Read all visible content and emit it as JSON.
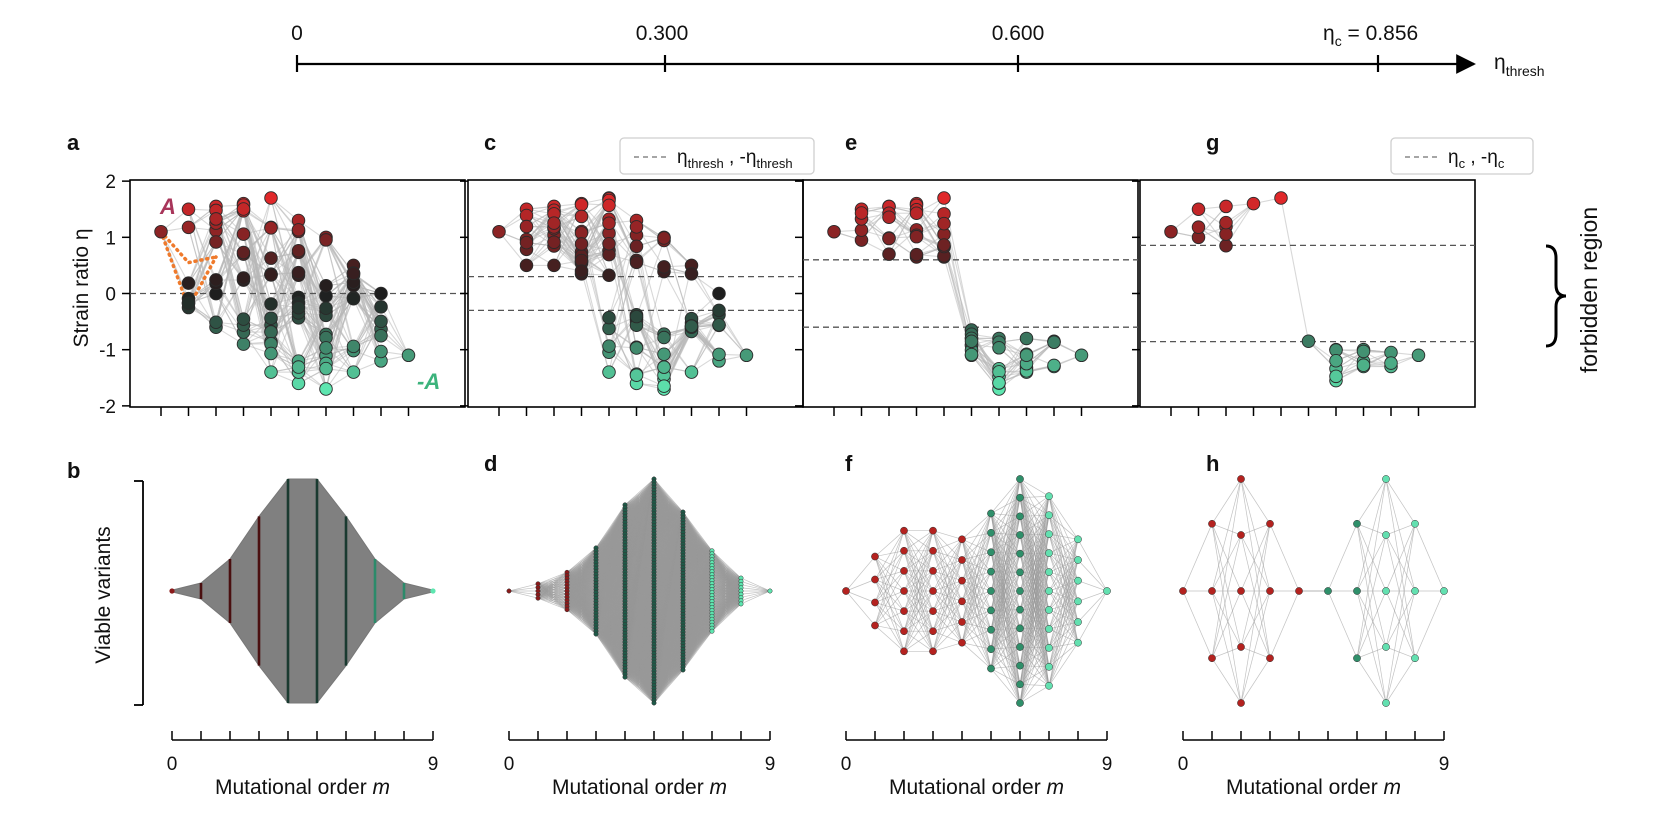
{
  "top_axis": {
    "ticks": [
      {
        "label": "0",
        "value": 0
      },
      {
        "label": "0.300",
        "value": 0.3
      },
      {
        "label": "0.600",
        "value": 0.6
      },
      {
        "label": "η",
        "sub": "c",
        "rest": " = 0.856",
        "value": 0.856
      }
    ],
    "axis_label": "η",
    "axis_label_sub": "thresh"
  },
  "panels": {
    "a": "a",
    "b": "b",
    "c": "c",
    "d": "d",
    "e": "e",
    "f": "f",
    "g": "g",
    "h": "h"
  },
  "labels": {
    "ylabel_top": "Strain ratio η",
    "ylabel_bottom": "Viable variants",
    "xlabel_main": "Mutational order ",
    "xlabel_var": "m",
    "annot_A": "A",
    "annot_negA": "-A",
    "forbidden": "forbidden region",
    "legend_thresh": {
      "a": "η",
      "a_sub": "thresh",
      "mid": " , -η",
      "b_sub": "thresh"
    },
    "legend_c": {
      "a": "η",
      "a_sub": "c",
      "mid": " , -η",
      "b_sub": "c"
    }
  },
  "colors": {
    "red": "#e0282a",
    "dark": "#1e1e1e",
    "teal": "#5ee6b0",
    "arrow_orange": "#ef7a2c",
    "annot_A": "#a8355a",
    "annot_negA": "#3cb37c"
  },
  "chart_data": [
    {
      "panel": "a",
      "type": "scatter",
      "threshold": 0,
      "ylim": [
        -2,
        2
      ],
      "yticks": [
        "2",
        "1",
        "0",
        "-1",
        "-2"
      ],
      "x": [
        0,
        1,
        2,
        3,
        4,
        5,
        6,
        7,
        8,
        9
      ],
      "y_max": [
        1.1,
        1.5,
        1.55,
        1.6,
        1.7,
        1.3,
        1.0,
        0.5,
        0.0,
        -1.1
      ],
      "y_min": [
        1.1,
        -0.25,
        -0.6,
        -0.9,
        -1.4,
        -1.6,
        -1.7,
        -1.4,
        -1.2,
        -1.1
      ]
    },
    {
      "panel": "b",
      "type": "area",
      "xlim": [
        0,
        9
      ],
      "xticks": [
        "0",
        "9"
      ],
      "x": [
        0,
        1,
        2,
        3,
        4,
        5,
        6,
        7,
        8,
        9
      ],
      "values": [
        1,
        9,
        36,
        84,
        126,
        126,
        84,
        36,
        9,
        1
      ]
    },
    {
      "panel": "c",
      "type": "scatter",
      "threshold": 0.3,
      "ylim": [
        -2,
        2
      ],
      "y_max": [
        1.1,
        1.5,
        1.55,
        1.6,
        1.7,
        1.3,
        1.0,
        0.5,
        0.0,
        -1.1
      ],
      "y_min": [
        1.1,
        0.5,
        0.5,
        0.35,
        -1.4,
        -1.6,
        -1.7,
        -1.4,
        -1.2,
        -1.1
      ]
    },
    {
      "panel": "d",
      "type": "network",
      "xticks": [
        "0",
        "9"
      ],
      "x": [
        0,
        1,
        2,
        3,
        4,
        5,
        6,
        7,
        8,
        9
      ],
      "values": [
        1,
        5,
        13,
        30,
        60,
        78,
        55,
        28,
        9,
        1
      ]
    },
    {
      "panel": "e",
      "type": "scatter",
      "threshold": 0.6,
      "ylim": [
        -2,
        2
      ],
      "y_max": [
        1.1,
        1.5,
        1.55,
        1.6,
        1.7,
        -0.65,
        -0.8,
        -0.8,
        -0.85,
        -1.1
      ],
      "y_min": [
        1.1,
        0.95,
        0.7,
        0.65,
        0.65,
        -1.1,
        -1.7,
        -1.4,
        -1.3,
        -1.1
      ]
    },
    {
      "panel": "f",
      "type": "network",
      "xticks": [
        "0",
        "9"
      ],
      "x": [
        0,
        1,
        2,
        3,
        4,
        5,
        6,
        7,
        8,
        9
      ],
      "values": [
        1,
        4,
        7,
        7,
        6,
        9,
        13,
        11,
        6,
        1
      ]
    },
    {
      "panel": "g",
      "type": "scatter",
      "threshold": 0.856,
      "ylim": [
        -2,
        2
      ],
      "y_max": [
        1.1,
        1.5,
        1.55,
        1.6,
        1.7,
        -0.85,
        -1.0,
        -1.0,
        -1.05,
        -1.1
      ],
      "y_min": [
        1.1,
        1.0,
        0.85,
        1.6,
        1.7,
        -0.85,
        -1.55,
        -1.3,
        -1.3,
        -1.1
      ]
    },
    {
      "panel": "h",
      "type": "network",
      "xticks": [
        "0",
        "9"
      ],
      "x": [
        0,
        1,
        2,
        3,
        4,
        5,
        6,
        7,
        8,
        9
      ],
      "values": [
        1,
        3,
        5,
        3,
        1,
        1,
        3,
        5,
        3,
        1
      ]
    }
  ]
}
